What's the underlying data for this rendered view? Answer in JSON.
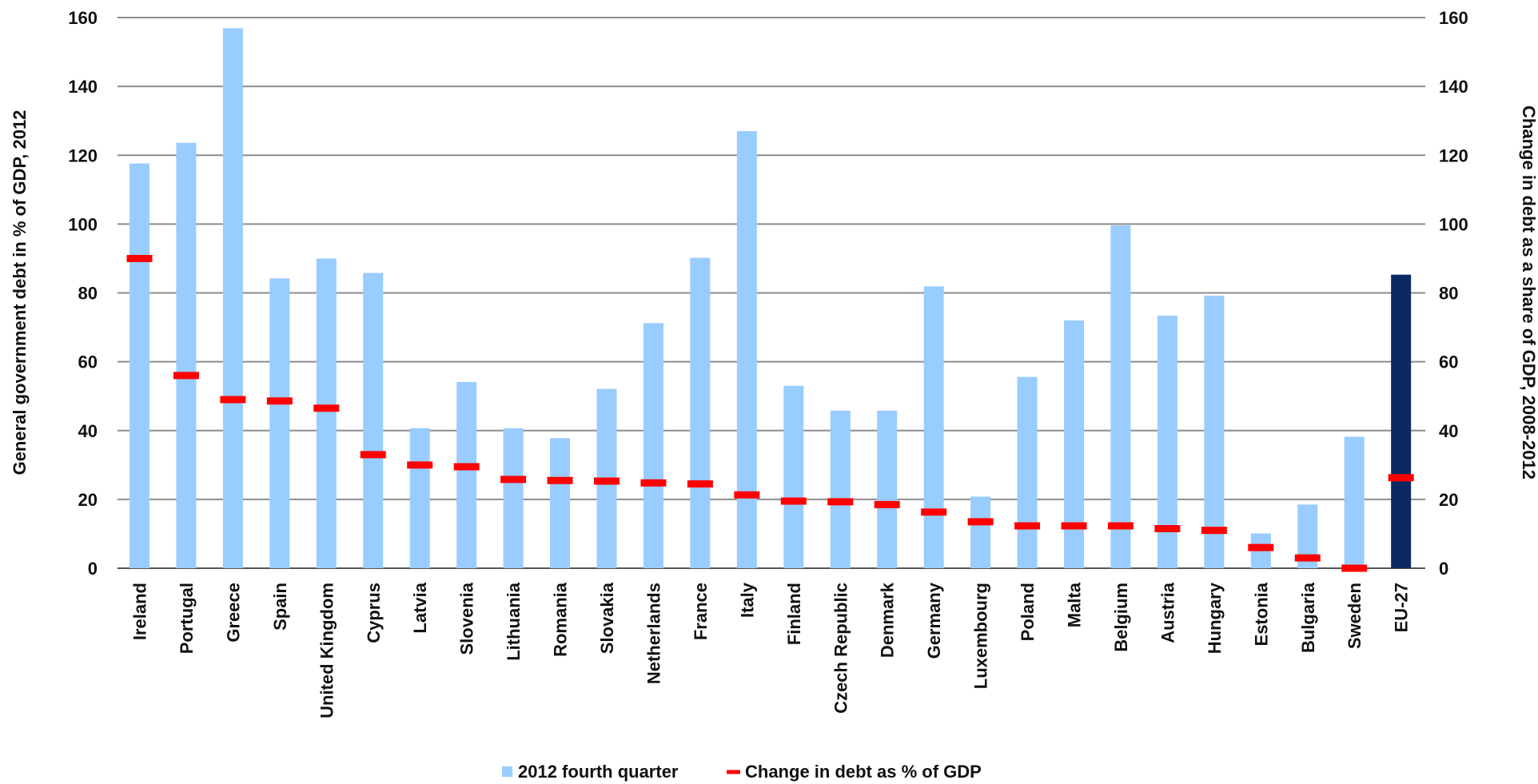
{
  "chart_data": {
    "type": "bar",
    "title": "",
    "ylabel": "General government debt in % of GDP, 2012",
    "y2label": "Change in debt as a share of GDP, 2008-2012",
    "ylim": [
      0,
      160
    ],
    "y2lim": [
      0,
      160
    ],
    "yticks": [
      0,
      20,
      40,
      60,
      80,
      100,
      120,
      140,
      160
    ],
    "grid": true,
    "legend_position": "bottom",
    "categories": [
      "Ireland",
      "Portugal",
      "Greece",
      "Spain",
      "United Kingdom",
      "Cyprus",
      "Latvia",
      "Slovenia",
      "Lithuania",
      "Romania",
      "Slovakia",
      "Netherlands",
      "France",
      "Italy",
      "Finland",
      "Czech Republic",
      "Denmark",
      "Germany",
      "Luxembourg",
      "Poland",
      "Malta",
      "Belgium",
      "Austria",
      "Hungary",
      "Estonia",
      "Bulgaria",
      "Sweden",
      "EU-27"
    ],
    "series": [
      {
        "name": "2012 fourth quarter",
        "kind": "bar",
        "color": "#99ccff",
        "highlight": {
          "category": "EU-27",
          "color": "#0b2a63"
        },
        "values": [
          117.6,
          123.6,
          156.9,
          84.2,
          90.0,
          85.8,
          40.7,
          54.1,
          40.7,
          37.8,
          52.1,
          71.2,
          90.2,
          127.0,
          53.0,
          45.8,
          45.8,
          81.9,
          20.8,
          55.6,
          72.0,
          99.6,
          73.4,
          79.2,
          10.1,
          18.5,
          38.2,
          85.3
        ]
      },
      {
        "name": "Change in debt as % of GDP",
        "kind": "dash",
        "color": "#ff0000",
        "values": [
          90.0,
          56.0,
          49.0,
          48.6,
          46.5,
          33.0,
          30.0,
          29.5,
          25.8,
          25.5,
          25.3,
          24.8,
          24.5,
          21.3,
          19.5,
          19.3,
          18.5,
          16.3,
          13.5,
          12.3,
          12.3,
          12.3,
          11.5,
          11.0,
          6.0,
          3.0,
          0.0,
          26.3
        ]
      }
    ]
  }
}
